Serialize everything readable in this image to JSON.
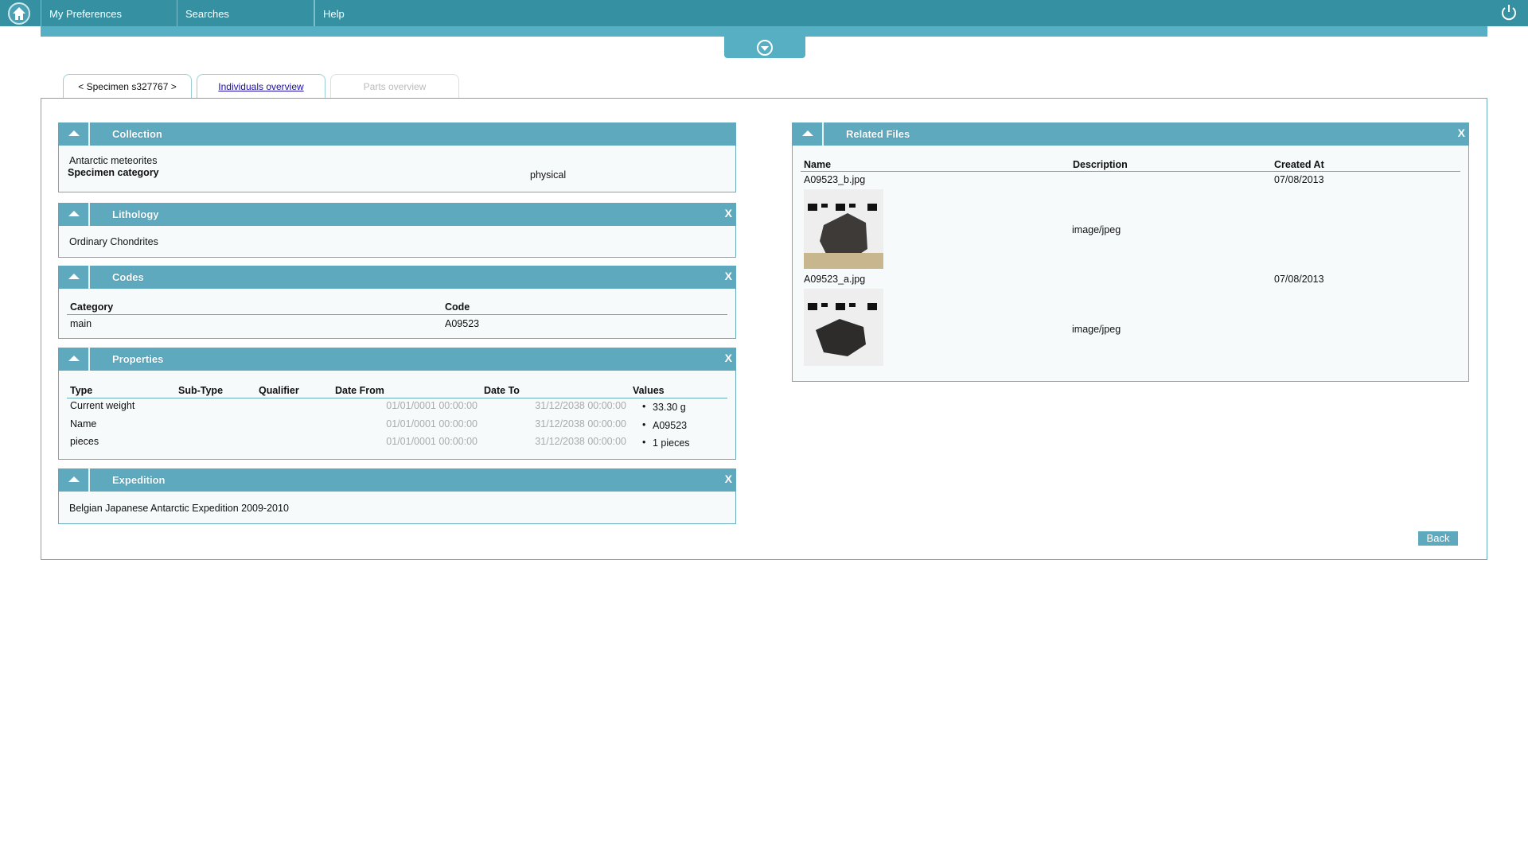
{
  "nav": {
    "items": [
      "My Preferences",
      "Searches",
      "Help"
    ]
  },
  "tabs": [
    "< Specimen s327767 >",
    "Individuals overview",
    "Parts overview"
  ],
  "collection": {
    "title": "Collection",
    "name": "Antarctic meteorites",
    "category_label": "Specimen category",
    "category_value": "physical"
  },
  "lithology": {
    "title": "Lithology",
    "value": "Ordinary Chondrites"
  },
  "codes": {
    "title": "Codes",
    "headers": [
      "Category",
      "Code"
    ],
    "rows": [
      [
        "main",
        "A09523"
      ]
    ]
  },
  "properties": {
    "title": "Properties",
    "headers": [
      "Type",
      "Sub-Type",
      "Qualifier",
      "Date From",
      "Date To",
      "Values"
    ],
    "rows": [
      {
        "type": "Current weight",
        "from": "01/01/0001 00:00:00",
        "to": "31/12/2038 00:00:00",
        "value": "33.30 g"
      },
      {
        "type": "Name",
        "from": "01/01/0001 00:00:00",
        "to": "31/12/2038 00:00:00",
        "value": "A09523"
      },
      {
        "type": "pieces",
        "from": "01/01/0001 00:00:00",
        "to": "31/12/2038 00:00:00",
        "value": "1 pieces"
      }
    ]
  },
  "expedition": {
    "title": "Expedition",
    "value": "Belgian Japanese Antarctic Expedition 2009-2010"
  },
  "related": {
    "title": "Related Files",
    "headers": [
      "Name",
      "Description",
      "Created At"
    ],
    "rows": [
      {
        "name": "A09523_b.jpg",
        "desc": "image/jpeg",
        "date": "07/08/2013"
      },
      {
        "name": "A09523_a.jpg",
        "desc": "image/jpeg",
        "date": "07/08/2013"
      }
    ]
  },
  "back_label": "Back",
  "colors": {
    "topbar": "#3590a1",
    "strip": "#57afc4",
    "panel_header": "#5fa9be"
  }
}
